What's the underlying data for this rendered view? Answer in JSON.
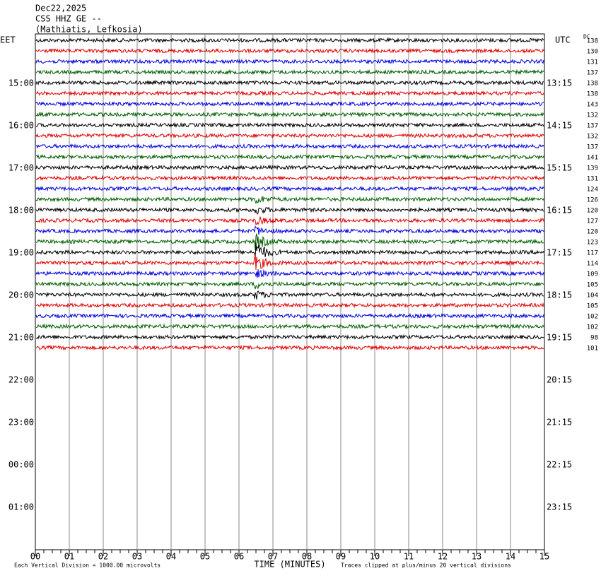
{
  "header": {
    "date": "Dec22,2025",
    "station": "CSS HHZ GE --",
    "location": "(Mathiatis, Lefkosia)"
  },
  "left_zone": "EET",
  "right_zone": "UTC",
  "dc_label": "DC",
  "left_times": [
    "15:00",
    "16:00",
    "17:00",
    "18:00",
    "19:00",
    "20:00",
    "21:00",
    "22:00",
    "23:00",
    "00:00",
    "01:00"
  ],
  "right_times": [
    "13:15",
    "14:15",
    "15:15",
    "16:15",
    "17:15",
    "18:15",
    "19:15",
    "20:15",
    "21:15",
    "22:15",
    "23:15"
  ],
  "dc_values": [
    138,
    130,
    131,
    137,
    138,
    138,
    143,
    132,
    137,
    132,
    137,
    141,
    139,
    131,
    124,
    126,
    120,
    127,
    120,
    123,
    117,
    114,
    109,
    105,
    104,
    105,
    102,
    102,
    98,
    101
  ],
  "trace_colors": [
    "#000000",
    "#e00000",
    "#0000e0",
    "#006000"
  ],
  "x_ticks": [
    "00",
    "01",
    "02",
    "03",
    "04",
    "05",
    "06",
    "07",
    "08",
    "09",
    "10",
    "11",
    "12",
    "13",
    "14",
    "15"
  ],
  "x_title": "TIME (MINUTES)",
  "footer": {
    "scale": "Each Vertical Division = 1000.00 microvolts",
    "clip": "Traces clipped at plus/minus 20 vertical divisions"
  }
}
